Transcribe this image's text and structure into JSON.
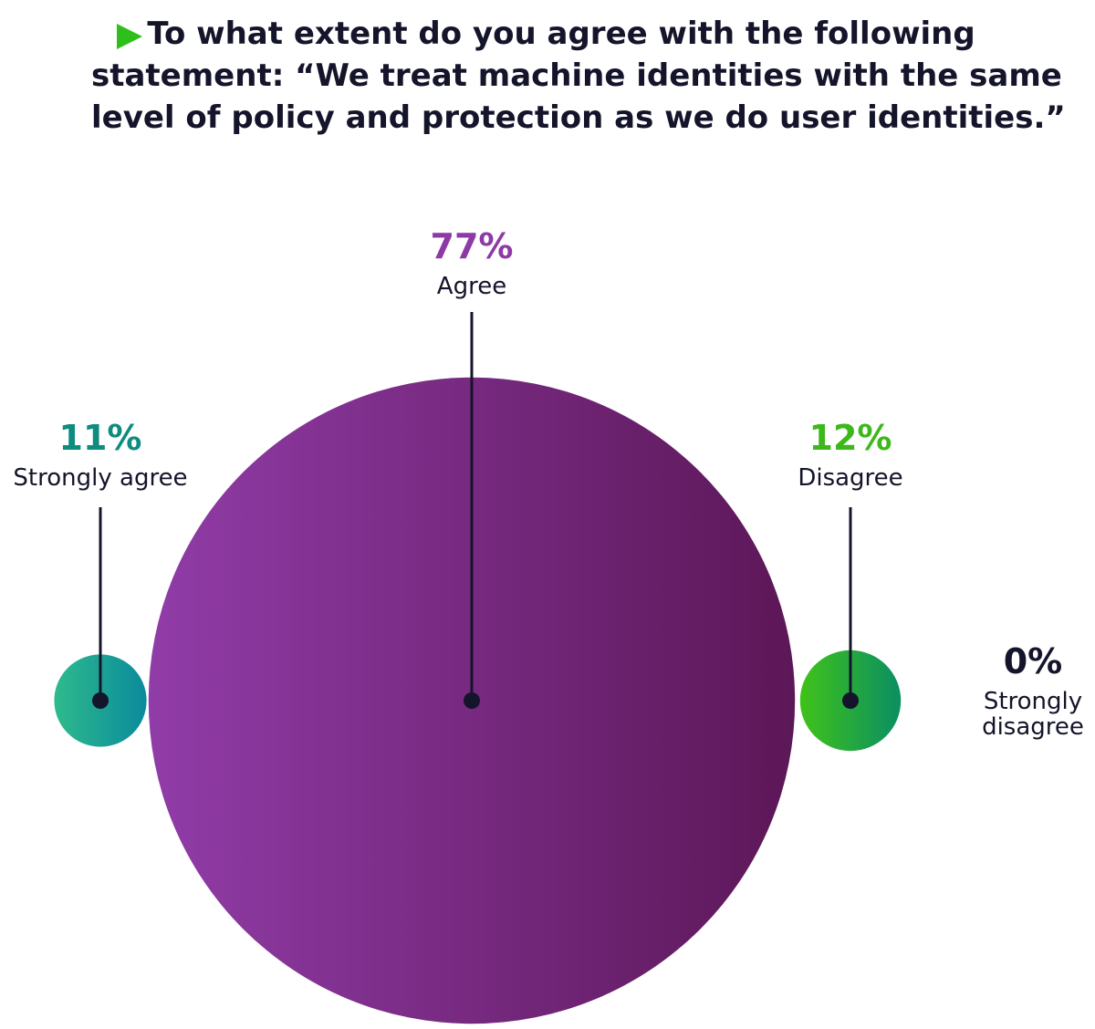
{
  "chart_data": {
    "type": "bubble",
    "title": [
      "To what extent do you agree with the following",
      "statement: “We treat machine identities with the same",
      "level of policy and protection as we do user identities.”"
    ],
    "categories": [
      "Strongly agree",
      "Agree",
      "Disagree",
      "Strongly disagree"
    ],
    "values": [
      11,
      77,
      12,
      0
    ],
    "value_labels": [
      "11%",
      "77%",
      "12%",
      "0%"
    ],
    "colors": [
      [
        "#2fba8c",
        "#0a8a9c"
      ],
      [
        "#913ca8",
        "#5c1757"
      ],
      [
        "#40c21a",
        "#0a8f62"
      ],
      [
        "#14142b",
        "#14142b"
      ]
    ],
    "label_colors": [
      "#0e8c7f",
      "#8e3aa6",
      "#3cb81a",
      "#14142b"
    ]
  }
}
